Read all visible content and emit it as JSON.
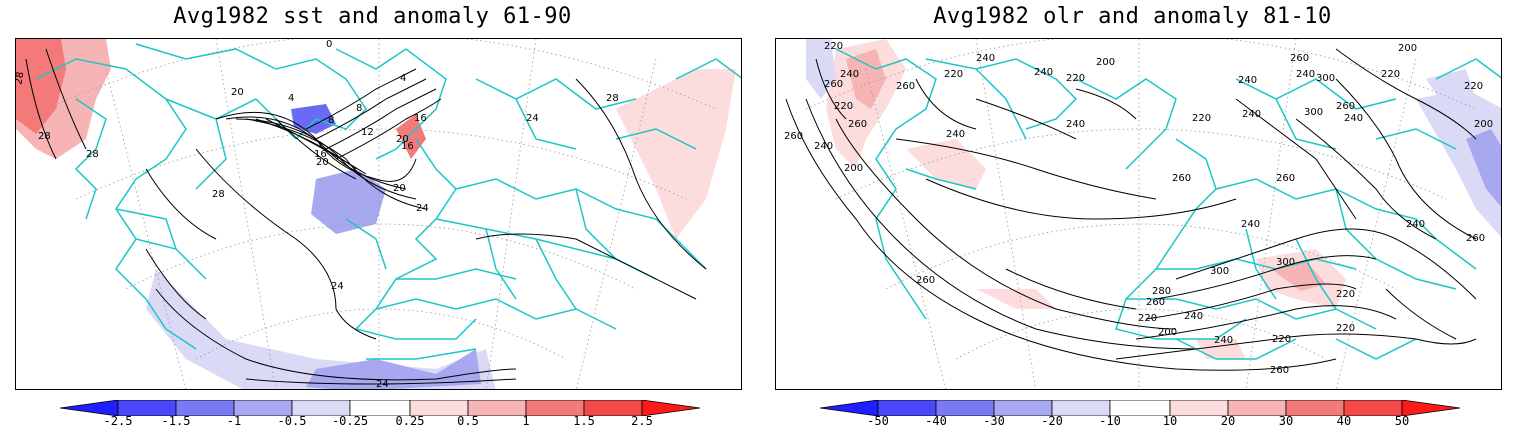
{
  "colors": {
    "coast": "#1cc6c6",
    "contour": "#000000",
    "neg_strong": "#1f1fff",
    "neg_mid": "#6a6af5",
    "neg_light": "#a8a8f0",
    "neg_faint": "#dadaf7",
    "pos_faint": "#fcdcdc",
    "pos_light": "#f6b4b4",
    "pos_mid": "#f47a7a",
    "pos_strong": "#ff3333"
  },
  "panels": [
    {
      "title": "Avg1982 sst and anomaly 61-90",
      "colorbar_ticks": [
        "-2.5",
        "-1.5",
        "-1",
        "-0.5",
        "-0.25",
        "0.25",
        "0.5",
        "1",
        "1.5",
        "2.5"
      ],
      "contour_labels": [
        "28",
        "28",
        "28",
        "28",
        "28",
        "24",
        "24",
        "24",
        "24",
        "20",
        "20",
        "20",
        "20",
        "16",
        "16",
        "16",
        "12",
        "8",
        "8",
        "4",
        "4",
        "0"
      ]
    },
    {
      "title": "Avg1982 olr and anomaly 81-10",
      "colorbar_ticks": [
        "-50",
        "-40",
        "-30",
        "-20",
        "-10",
        "10",
        "20",
        "30",
        "40",
        "50"
      ],
      "contour_labels": [
        "220",
        "240",
        "260",
        "260",
        "240",
        "220",
        "200",
        "260",
        "240",
        "220",
        "200",
        "240",
        "220",
        "240",
        "260",
        "240",
        "220",
        "240",
        "260",
        "300",
        "220",
        "300",
        "240",
        "260",
        "240",
        "200",
        "200",
        "220",
        "240",
        "260",
        "240",
        "260",
        "240",
        "260",
        "300",
        "300",
        "280",
        "260",
        "240",
        "220",
        "200",
        "240",
        "220",
        "220",
        "260",
        "260",
        "220"
      ]
    }
  ]
}
